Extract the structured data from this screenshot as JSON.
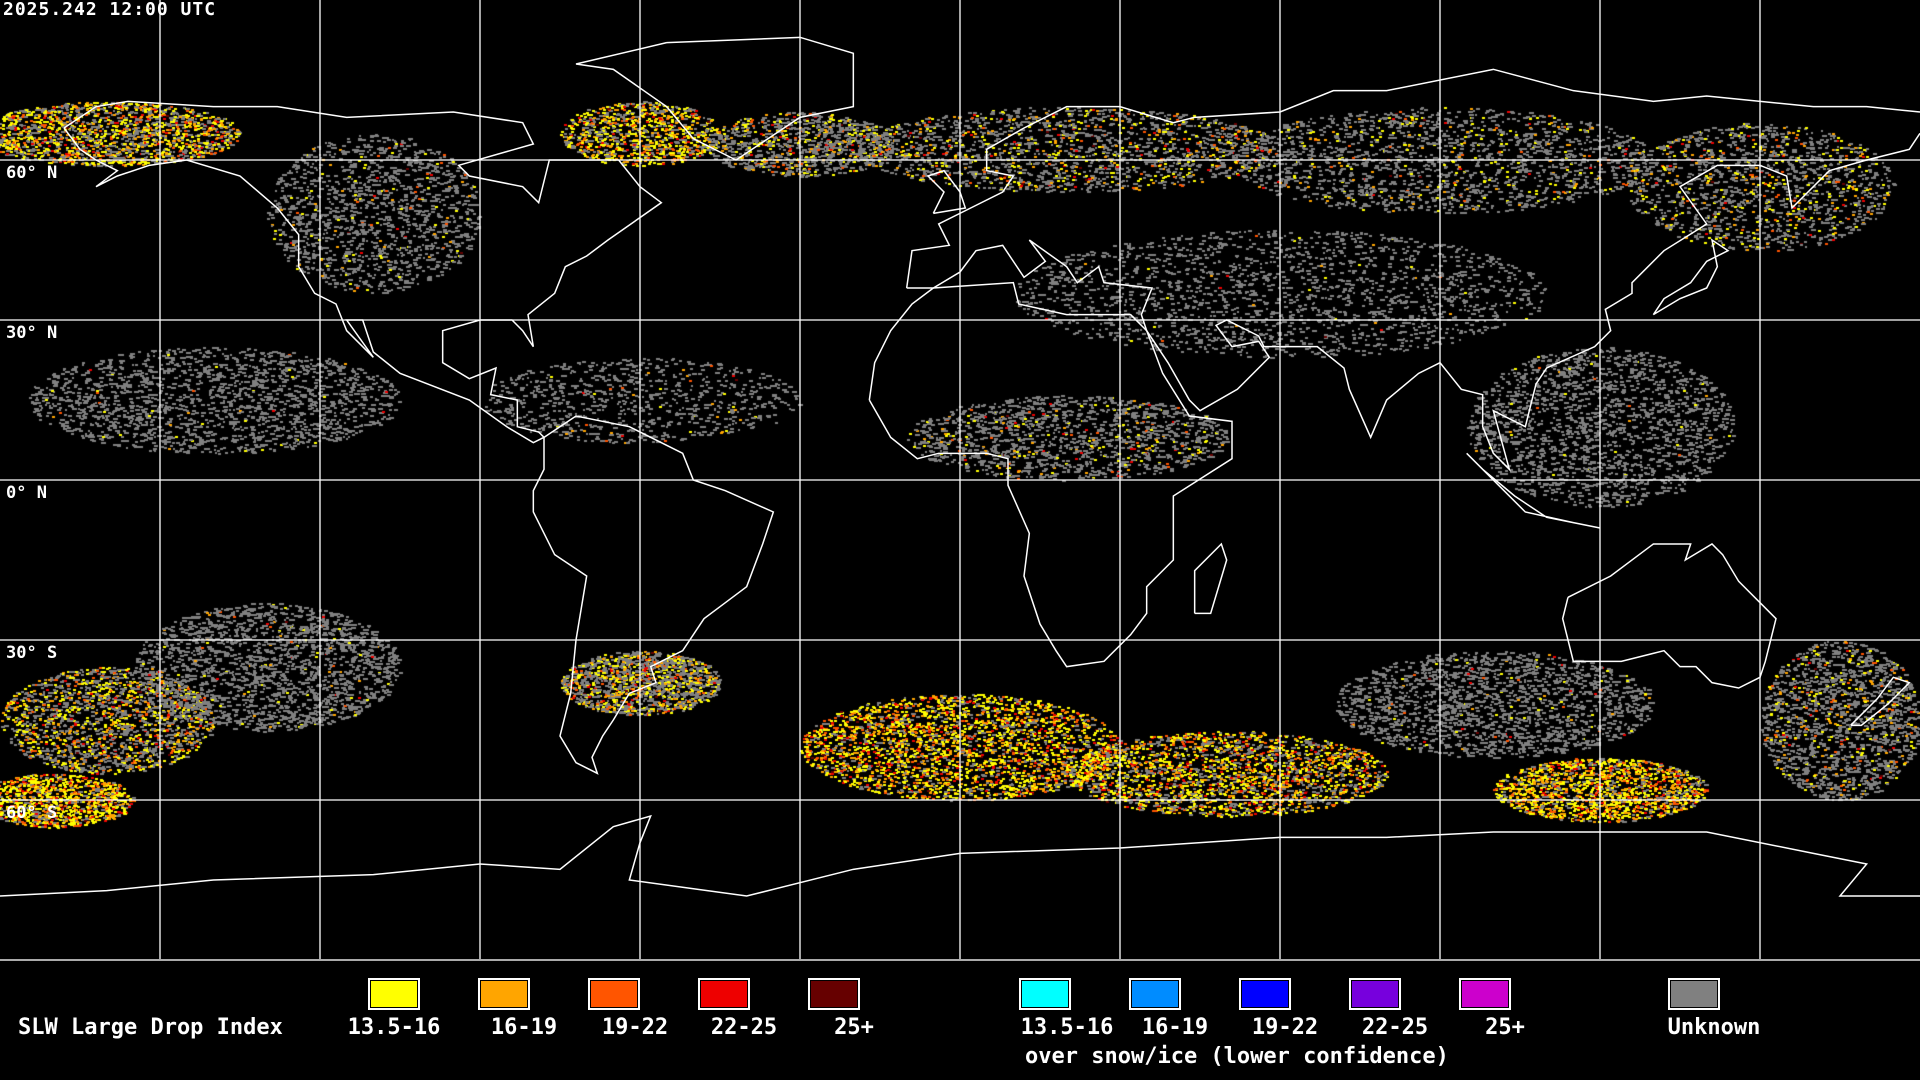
{
  "header": {
    "timestamp": "2025.242 12:00 UTC"
  },
  "map": {
    "projection": "equirectangular",
    "lat_labels": [
      "60° N",
      "30° N",
      "0° N",
      "30° S",
      "60° S"
    ],
    "graticule_spacing_deg": 30
  },
  "legend": {
    "title": "SLW Large Drop Index",
    "primary": [
      {
        "label": "13.5-16",
        "color": "#ffff00"
      },
      {
        "label": "16-19",
        "color": "#ffa500"
      },
      {
        "label": "19-22",
        "color": "#ff5500"
      },
      {
        "label": "22-25",
        "color": "#ee0000"
      },
      {
        "label": "25+",
        "color": "#660000"
      }
    ],
    "snow_ice": [
      {
        "label": "13.5-16",
        "color": "#00ffff"
      },
      {
        "label": "16-19",
        "color": "#008cff"
      },
      {
        "label": "19-22",
        "color": "#0000ff"
      },
      {
        "label": "22-25",
        "color": "#7700dd"
      },
      {
        "label": "25+",
        "color": "#cc00cc"
      }
    ],
    "snow_ice_caption": "over snow/ice (lower confidence)",
    "unknown": {
      "label": "Unknown",
      "color": "#808080"
    }
  }
}
